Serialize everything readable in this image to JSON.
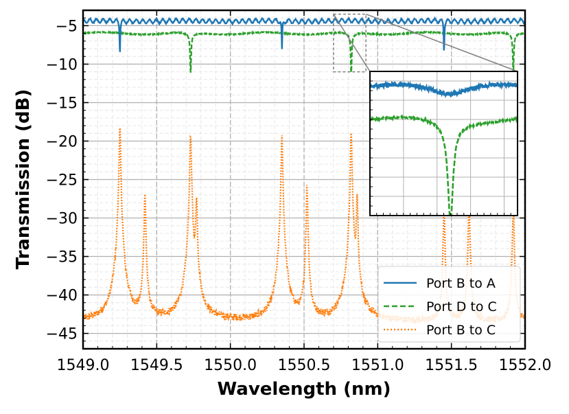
{
  "chart_data": {
    "type": "line",
    "title": "",
    "xlabel": "Wavelength (nm)",
    "ylabel": "Transmission (dB)",
    "xlim": [
      1549.0,
      1552.0
    ],
    "ylim": [
      -47,
      -3
    ],
    "xticks": [
      1549.0,
      1549.5,
      1550.0,
      1550.5,
      1551.0,
      1551.5,
      1552.0
    ],
    "xtick_labels": [
      "1549.0",
      "1549.5",
      "1550.0",
      "1550.5",
      "1551.0",
      "1551.5",
      "1552.0"
    ],
    "yticks": [
      -5,
      -10,
      -15,
      -20,
      -25,
      -30,
      -35,
      -40,
      -45
    ],
    "ytick_labels": [
      "−5",
      "−10",
      "−15",
      "−20",
      "−25",
      "−30",
      "−35",
      "−40",
      "−45"
    ],
    "grid": true,
    "legend_position": "lower-right",
    "series": [
      {
        "name": "Port B to A",
        "color": "#1f77b4",
        "style": "solid",
        "baseline_db": -4.4,
        "dips": [
          {
            "x": 1549.25,
            "y": -8.5
          },
          {
            "x": 1550.35,
            "y": -8.3
          },
          {
            "x": 1551.45,
            "y": -8.3
          }
        ]
      },
      {
        "name": "Port D to C",
        "color": "#2ca02c",
        "style": "dashed",
        "baseline_db": -6.0,
        "dips": [
          {
            "x": 1549.73,
            "y": -10.8
          },
          {
            "x": 1550.82,
            "y": -10.8
          },
          {
            "x": 1551.92,
            "y": -10.8
          }
        ]
      },
      {
        "name": "Port B to C",
        "color": "#ff7f0e",
        "style": "dotted",
        "baseline_db": -43.5,
        "peaks": [
          {
            "x": 1549.25,
            "y": -18.5
          },
          {
            "x": 1549.42,
            "y": -27.0
          },
          {
            "x": 1549.73,
            "y": -19.0
          },
          {
            "x": 1549.77,
            "y": -27.5
          },
          {
            "x": 1550.35,
            "y": -19.5
          },
          {
            "x": 1550.52,
            "y": -26.0
          },
          {
            "x": 1550.82,
            "y": -19.0
          },
          {
            "x": 1550.86,
            "y": -27.5
          },
          {
            "x": 1551.45,
            "y": -29.0
          },
          {
            "x": 1551.62,
            "y": -28.0
          },
          {
            "x": 1551.92,
            "y": -28.5
          }
        ]
      }
    ],
    "zoom_region": {
      "xlim": [
        1550.7,
        1550.92
      ],
      "ylim": [
        -11,
        -3.5
      ]
    },
    "inset": {
      "xlim": [
        1550.7,
        1550.92
      ],
      "ylim": [
        -11,
        -3.5
      ],
      "series": [
        {
          "name": "Port B to A",
          "baseline_db": -4.3
        },
        {
          "name": "Port D to C",
          "baseline_db": -6.0,
          "dip": {
            "x": 1550.82,
            "y": -10.8
          }
        }
      ]
    }
  },
  "colors": {
    "port_b_to_a": "#1f77b4",
    "port_d_to_c": "#2ca02c",
    "port_b_to_c": "#ff7f0e",
    "grid_major": "#b0b0b0",
    "grid_minor": "#e6e6e6"
  }
}
